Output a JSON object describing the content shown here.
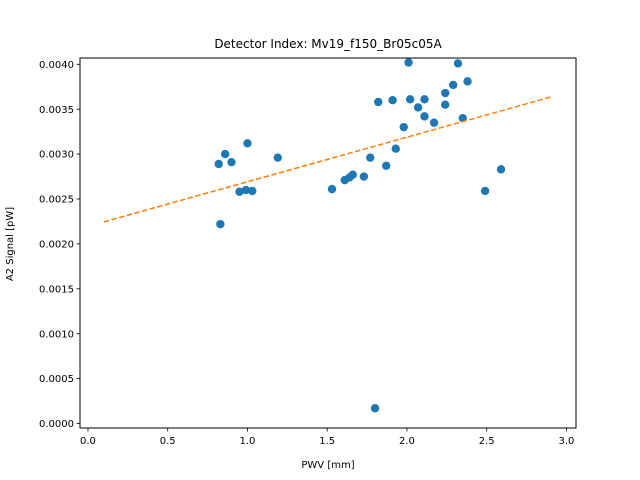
{
  "chart_data": {
    "type": "scatter",
    "title": "Detector Index: Mv19_f150_Br05c05A",
    "xlabel": "PWV [mm]",
    "ylabel": "A2 Signal [pW]",
    "xlim": [
      -0.05,
      3.06
    ],
    "ylim": [
      -5e-05,
      0.00407
    ],
    "xticks": [
      0.0,
      0.5,
      1.0,
      1.5,
      2.0,
      2.5,
      3.0
    ],
    "xtick_labels": [
      "0.0",
      "0.5",
      "1.0",
      "1.5",
      "2.0",
      "2.5",
      "3.0"
    ],
    "yticks": [
      0.0,
      0.0005,
      0.001,
      0.0015,
      0.002,
      0.0025,
      0.003,
      0.0035,
      0.004
    ],
    "ytick_labels": [
      "0.0000",
      "0.0005",
      "0.0010",
      "0.0015",
      "0.0020",
      "0.0025",
      "0.0030",
      "0.0035",
      "0.0040"
    ],
    "grid": false,
    "series": [
      {
        "name": "data",
        "kind": "scatter",
        "color": "#1f77b4",
        "points": [
          [
            0.82,
            0.00289
          ],
          [
            0.83,
            0.00222
          ],
          [
            0.86,
            0.003
          ],
          [
            0.9,
            0.00291
          ],
          [
            0.95,
            0.00258
          ],
          [
            0.99,
            0.0026
          ],
          [
            1.0,
            0.00312
          ],
          [
            1.03,
            0.00259
          ],
          [
            1.19,
            0.00296
          ],
          [
            1.53,
            0.00261
          ],
          [
            1.61,
            0.00271
          ],
          [
            1.64,
            0.00274
          ],
          [
            1.66,
            0.00277
          ],
          [
            1.73,
            0.00275
          ],
          [
            1.77,
            0.00296
          ],
          [
            1.8,
            0.00017
          ],
          [
            1.82,
            0.00358
          ],
          [
            1.87,
            0.00287
          ],
          [
            1.91,
            0.0036
          ],
          [
            1.93,
            0.00306
          ],
          [
            1.98,
            0.0033
          ],
          [
            2.01,
            0.00402
          ],
          [
            2.02,
            0.00361
          ],
          [
            2.07,
            0.00352
          ],
          [
            2.11,
            0.00361
          ],
          [
            2.11,
            0.00342
          ],
          [
            2.17,
            0.00335
          ],
          [
            2.24,
            0.00368
          ],
          [
            2.24,
            0.00355
          ],
          [
            2.29,
            0.00377
          ],
          [
            2.32,
            0.00401
          ],
          [
            2.35,
            0.0034
          ],
          [
            2.38,
            0.00381
          ],
          [
            2.49,
            0.00259
          ],
          [
            2.59,
            0.00283
          ]
        ]
      },
      {
        "name": "fit",
        "kind": "line",
        "style": "dashed",
        "color": "#ff7f0e",
        "points": [
          [
            0.1,
            0.002245
          ],
          [
            2.9,
            0.003635
          ]
        ]
      }
    ]
  }
}
